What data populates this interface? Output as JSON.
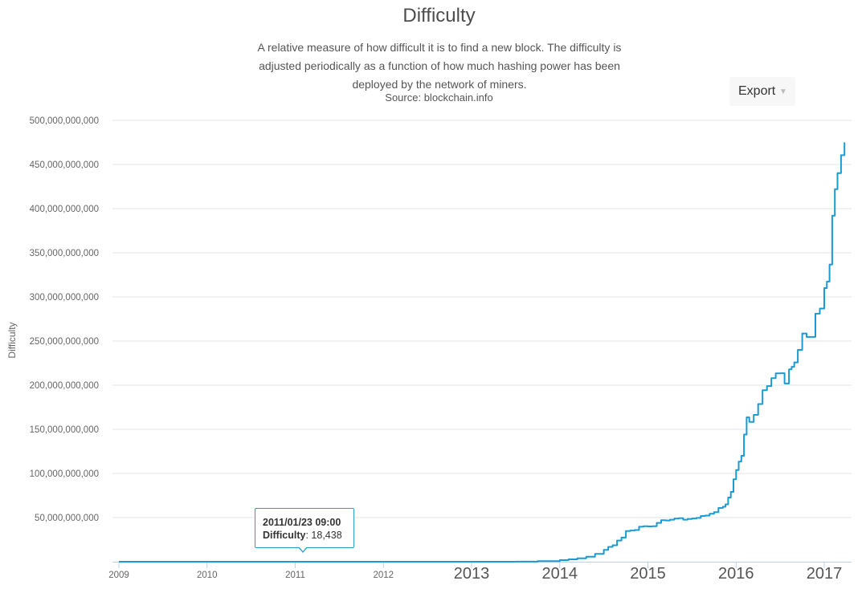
{
  "chart_data": {
    "type": "line",
    "title": "Difficulty",
    "subtitle": "A relative measure of how difficult it is to find a new block. The difficulty is adjusted periodically as a function of how much hashing power has been deployed by the network of miners.",
    "source": "Source: blockchain.info",
    "ylabel": "Difficulty",
    "xlabel": "",
    "ylim": [
      0,
      500000000000
    ],
    "xlim": [
      2009.0,
      2017.3
    ],
    "y_ticks": [
      {
        "value": 50000000000,
        "label": "50,000,000,000"
      },
      {
        "value": 100000000000,
        "label": "100,000,000,000"
      },
      {
        "value": 150000000000,
        "label": "150,000,000,000"
      },
      {
        "value": 200000000000,
        "label": "200,000,000,000"
      },
      {
        "value": 250000000000,
        "label": "250,000,000,000"
      },
      {
        "value": 300000000000,
        "label": "300,000,000,000"
      },
      {
        "value": 350000000000,
        "label": "350,000,000,000"
      },
      {
        "value": 400000000000,
        "label": "400,000,000,000"
      },
      {
        "value": 450000000000,
        "label": "450,000,000,000"
      },
      {
        "value": 500000000000,
        "label": "500,000,000,000"
      }
    ],
    "x_ticks": [
      {
        "value": 2009,
        "label": "2009",
        "emphasis": "small"
      },
      {
        "value": 2010,
        "label": "2010",
        "emphasis": "small"
      },
      {
        "value": 2011,
        "label": "2011",
        "emphasis": "small"
      },
      {
        "value": 2012,
        "label": "2012",
        "emphasis": "small"
      },
      {
        "value": 2013,
        "label": "2013",
        "emphasis": "large"
      },
      {
        "value": 2014,
        "label": "2014",
        "emphasis": "large"
      },
      {
        "value": 2015,
        "label": "2015",
        "emphasis": "large"
      },
      {
        "value": 2016,
        "label": "2016",
        "emphasis": "large"
      },
      {
        "value": 2017,
        "label": "2017",
        "emphasis": "large"
      }
    ],
    "grid": true,
    "legend": "none",
    "series": [
      {
        "color": "#1a9bd1",
        "step": true,
        "x": [
          2009.0,
          2011.0,
          2013.0,
          2013.5,
          2013.75,
          2014.0,
          2014.1,
          2014.2,
          2014.3,
          2014.4,
          2014.5,
          2014.55,
          2014.6,
          2014.65,
          2014.7,
          2014.75,
          2014.8,
          2014.85,
          2014.9,
          2014.95,
          2015.0,
          2015.05,
          2015.1,
          2015.15,
          2015.2,
          2015.25,
          2015.3,
          2015.35,
          2015.4,
          2015.45,
          2015.5,
          2015.55,
          2015.6,
          2015.65,
          2015.7,
          2015.75,
          2015.8,
          2015.85,
          2015.88,
          2015.91,
          2015.94,
          2015.97,
          2016.0,
          2016.03,
          2016.06,
          2016.09,
          2016.12,
          2016.15,
          2016.2,
          2016.25,
          2016.3,
          2016.35,
          2016.4,
          2016.45,
          2016.5,
          2016.55,
          2016.6,
          2016.63,
          2016.66,
          2016.7,
          2016.75,
          2016.8,
          2016.85,
          2016.9,
          2016.95,
          2017.0,
          2017.03,
          2017.06,
          2017.09,
          2017.12,
          2017.15,
          2017.19,
          2017.23
        ],
        "values": [
          0,
          0,
          0,
          60000000,
          700000000,
          1800000000,
          2700000000,
          3900000000,
          5700000000,
          8900000000,
          13400000000,
          16800000000,
          18600000000,
          24000000000,
          27400000000,
          34700000000,
          35400000000,
          35900000000,
          39600000000,
          40300000000,
          40000000000,
          40300000000,
          44000000000,
          47000000000,
          46700000000,
          47600000000,
          48800000000,
          49400000000,
          47600000000,
          48400000000,
          49000000000,
          49600000000,
          51800000000,
          52300000000,
          54300000000,
          56200000000,
          60900000000,
          62300000000,
          65000000000,
          72700000000,
          79100000000,
          93400000000,
          103900000000,
          113400000000,
          120000000000,
          144100000000,
          163500000000,
          158400000000,
          166400000000,
          178600000000,
          194300000000,
          199000000000,
          208000000000,
          213400000000,
          213500000000,
          201900000000,
          218000000000,
          220800000000,
          225800000000,
          240000000000,
          258500000000,
          254600000000,
          254600000000,
          281000000000,
          286800000000,
          310000000000,
          317400000000,
          336700000000,
          392100000000,
          422000000000,
          440200000000,
          460500000000,
          475100000000
        ]
      }
    ]
  },
  "tooltip": {
    "date": "2011/01/23 09:00",
    "series_name": "Difficulty",
    "value_text": ": 18,438"
  },
  "toolbar": {
    "export_label": "Export"
  }
}
